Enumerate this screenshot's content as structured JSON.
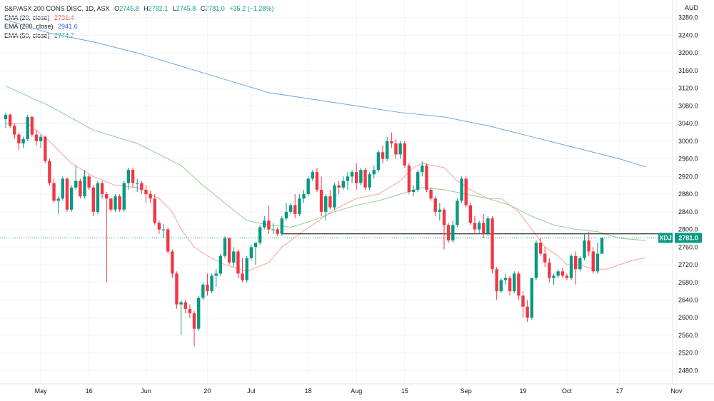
{
  "header": {
    "symbol": "S&P/ASX 200 CONS DISC, 1D, ASX",
    "o_label": "O",
    "o": "2745.8",
    "h_label": "H",
    "h": "2782.1",
    "l_label": "L",
    "l": "2745.8",
    "c_label": "C",
    "c": "2781.0",
    "change": "+35.2 (+1.28%)"
  },
  "indicators": [
    {
      "label": "EMA (20, close)",
      "value": "2736.4",
      "color": "#f5a59a"
    },
    {
      "label": "EMA (200, close)",
      "value": "2941.6",
      "color": "#6fa8dc"
    },
    {
      "label": "EMA (50, close)",
      "value": "2774.7",
      "color": "#8fce8f"
    }
  ],
  "currency": "AUD",
  "ticker_badge": "XDJ",
  "last_price": "2781.0",
  "colors": {
    "up": "#089981",
    "down": "#f23645",
    "hline": "#000000",
    "grid": "#f0f3fa"
  },
  "chart_data": {
    "type": "candlestick",
    "ylim": [
      2450,
      3320
    ],
    "y_ticks": [
      "2480.0",
      "2520.0",
      "2560.0",
      "2600.0",
      "2640.0",
      "2680.0",
      "2720.0",
      "2760.0",
      "2800.0",
      "2840.0",
      "2880.0",
      "2920.0",
      "2960.0",
      "3000.0",
      "3040.0",
      "3080.0",
      "3120.0",
      "3160.0",
      "3200.0",
      "3240.0",
      "3280.0"
    ],
    "x_ticks": [
      {
        "label": "May",
        "index": 8
      },
      {
        "label": "16",
        "index": 19
      },
      {
        "label": "Jun",
        "index": 32
      },
      {
        "label": "20",
        "index": 46
      },
      {
        "label": "Jul",
        "index": 56
      },
      {
        "label": "18",
        "index": 69
      },
      {
        "label": "Aug",
        "index": 80
      },
      {
        "label": "15",
        "index": 91
      },
      {
        "label": "Sep",
        "index": 105
      },
      {
        "label": "19",
        "index": 118
      },
      {
        "label": "Oct",
        "index": 128
      },
      {
        "label": "17",
        "index": 140
      },
      {
        "label": "Nov",
        "index": 153
      }
    ],
    "horizontal_line": 2790,
    "ohlc": [
      [
        3050,
        3065,
        3030,
        3060
      ],
      [
        3060,
        3063,
        3030,
        3035
      ],
      [
        3035,
        3040,
        3005,
        3015
      ],
      [
        3015,
        3020,
        2980,
        2995
      ],
      [
        2995,
        3010,
        2985,
        3005
      ],
      [
        3005,
        3060,
        3000,
        3055
      ],
      [
        3055,
        3058,
        3010,
        3015
      ],
      [
        3015,
        3025,
        2990,
        3000
      ],
      [
        3000,
        3015,
        2985,
        3010
      ],
      [
        3010,
        3012,
        2950,
        2955
      ],
      [
        2955,
        2960,
        2900,
        2905
      ],
      [
        2905,
        2915,
        2860,
        2865
      ],
      [
        2865,
        2875,
        2835,
        2870
      ],
      [
        2870,
        2920,
        2865,
        2915
      ],
      [
        2915,
        2918,
        2840,
        2845
      ],
      [
        2845,
        2900,
        2840,
        2895
      ],
      [
        2895,
        2945,
        2890,
        2910
      ],
      [
        2910,
        2915,
        2870,
        2875
      ],
      [
        2875,
        2935,
        2870,
        2920
      ],
      [
        2920,
        2925,
        2890,
        2895
      ],
      [
        2895,
        2900,
        2830,
        2840
      ],
      [
        2840,
        2910,
        2835,
        2905
      ],
      [
        2905,
        2910,
        2870,
        2880
      ],
      [
        2880,
        2885,
        2680,
        2870
      ],
      [
        2870,
        2872,
        2840,
        2845
      ],
      [
        2845,
        2880,
        2840,
        2875
      ],
      [
        2875,
        2880,
        2840,
        2845
      ],
      [
        2845,
        2910,
        2840,
        2905
      ],
      [
        2905,
        2940,
        2890,
        2935
      ],
      [
        2935,
        2940,
        2895,
        2905
      ],
      [
        2905,
        2915,
        2885,
        2905
      ],
      [
        2905,
        2910,
        2880,
        2890
      ],
      [
        2890,
        2900,
        2860,
        2880
      ],
      [
        2880,
        2888,
        2860,
        2870
      ],
      [
        2870,
        2880,
        2810,
        2815
      ],
      [
        2815,
        2820,
        2790,
        2800
      ],
      [
        2800,
        2812,
        2780,
        2800
      ],
      [
        2800,
        2805,
        2745,
        2750
      ],
      [
        2750,
        2755,
        2690,
        2700
      ],
      [
        2700,
        2705,
        2620,
        2630
      ],
      [
        2630,
        2640,
        2560,
        2635
      ],
      [
        2635,
        2640,
        2610,
        2620
      ],
      [
        2620,
        2630,
        2600,
        2610
      ],
      [
        2610,
        2615,
        2535,
        2575
      ],
      [
        2575,
        2650,
        2570,
        2645
      ],
      [
        2645,
        2680,
        2640,
        2675
      ],
      [
        2675,
        2700,
        2650,
        2660
      ],
      [
        2660,
        2700,
        2655,
        2695
      ],
      [
        2695,
        2710,
        2670,
        2700
      ],
      [
        2700,
        2745,
        2695,
        2740
      ],
      [
        2740,
        2785,
        2735,
        2780
      ],
      [
        2780,
        2782,
        2720,
        2725
      ],
      [
        2725,
        2760,
        2715,
        2750
      ],
      [
        2750,
        2755,
        2690,
        2700
      ],
      [
        2700,
        2735,
        2680,
        2685
      ],
      [
        2685,
        2740,
        2680,
        2735
      ],
      [
        2735,
        2765,
        2730,
        2760
      ],
      [
        2760,
        2770,
        2720,
        2770
      ],
      [
        2770,
        2810,
        2765,
        2805
      ],
      [
        2805,
        2830,
        2800,
        2820
      ],
      [
        2820,
        2855,
        2790,
        2800
      ],
      [
        2800,
        2815,
        2790,
        2800
      ],
      [
        2800,
        2805,
        2785,
        2790
      ],
      [
        2790,
        2830,
        2785,
        2825
      ],
      [
        2825,
        2860,
        2820,
        2840
      ],
      [
        2840,
        2860,
        2835,
        2855
      ],
      [
        2855,
        2880,
        2825,
        2835
      ],
      [
        2835,
        2880,
        2830,
        2870
      ],
      [
        2870,
        2890,
        2860,
        2880
      ],
      [
        2880,
        2920,
        2875,
        2915
      ],
      [
        2915,
        2935,
        2910,
        2930
      ],
      [
        2930,
        2940,
        2885,
        2890
      ],
      [
        2890,
        2920,
        2830,
        2840
      ],
      [
        2840,
        2880,
        2820,
        2875
      ],
      [
        2875,
        2890,
        2845,
        2850
      ],
      [
        2850,
        2905,
        2845,
        2900
      ],
      [
        2900,
        2910,
        2880,
        2895
      ],
      [
        2895,
        2920,
        2890,
        2910
      ],
      [
        2910,
        2930,
        2890,
        2920
      ],
      [
        2920,
        2935,
        2905,
        2930
      ],
      [
        2930,
        2950,
        2890,
        2905
      ],
      [
        2905,
        2940,
        2900,
        2935
      ],
      [
        2935,
        2940,
        2890,
        2895
      ],
      [
        2895,
        2930,
        2890,
        2925
      ],
      [
        2925,
        2945,
        2915,
        2935
      ],
      [
        2935,
        2980,
        2930,
        2975
      ],
      [
        2975,
        2990,
        2950,
        2960
      ],
      [
        2960,
        3010,
        2955,
        3000
      ],
      [
        3000,
        3020,
        2985,
        2995
      ],
      [
        2995,
        3005,
        2960,
        2970
      ],
      [
        2970,
        3000,
        2960,
        2995
      ],
      [
        2995,
        3000,
        2940,
        2945
      ],
      [
        2945,
        2950,
        2880,
        2885
      ],
      [
        2885,
        2900,
        2875,
        2890
      ],
      [
        2890,
        2935,
        2885,
        2930
      ],
      [
        2930,
        2955,
        2920,
        2945
      ],
      [
        2945,
        2950,
        2885,
        2890
      ],
      [
        2890,
        2895,
        2865,
        2870
      ],
      [
        2870,
        2875,
        2830,
        2840
      ],
      [
        2840,
        2860,
        2820,
        2845
      ],
      [
        2845,
        2850,
        2755,
        2810
      ],
      [
        2810,
        2815,
        2770,
        2775
      ],
      [
        2775,
        2820,
        2770,
        2810
      ],
      [
        2810,
        2870,
        2805,
        2865
      ],
      [
        2865,
        2920,
        2860,
        2915
      ],
      [
        2915,
        2920,
        2850,
        2855
      ],
      [
        2855,
        2860,
        2810,
        2815
      ],
      [
        2815,
        2830,
        2790,
        2800
      ],
      [
        2800,
        2820,
        2790,
        2815
      ],
      [
        2815,
        2835,
        2780,
        2790
      ],
      [
        2790,
        2830,
        2785,
        2825
      ],
      [
        2825,
        2830,
        2700,
        2710
      ],
      [
        2710,
        2715,
        2640,
        2660
      ],
      [
        2660,
        2690,
        2655,
        2685
      ],
      [
        2685,
        2700,
        2675,
        2690
      ],
      [
        2690,
        2695,
        2650,
        2660
      ],
      [
        2660,
        2705,
        2655,
        2700
      ],
      [
        2700,
        2705,
        2640,
        2650
      ],
      [
        2650,
        2660,
        2600,
        2625
      ],
      [
        2625,
        2640,
        2590,
        2600
      ],
      [
        2600,
        2690,
        2595,
        2690
      ],
      [
        2690,
        2775,
        2685,
        2770
      ],
      [
        2770,
        2780,
        2740,
        2745
      ],
      [
        2745,
        2760,
        2715,
        2725
      ],
      [
        2725,
        2735,
        2680,
        2690
      ],
      [
        2690,
        2700,
        2675,
        2695
      ],
      [
        2695,
        2710,
        2690,
        2705
      ],
      [
        2705,
        2712,
        2690,
        2695
      ],
      [
        2695,
        2700,
        2685,
        2690
      ],
      [
        2690,
        2745,
        2685,
        2740
      ],
      [
        2740,
        2750,
        2675,
        2710
      ],
      [
        2710,
        2740,
        2705,
        2735
      ],
      [
        2735,
        2790,
        2730,
        2775
      ],
      [
        2775,
        2795,
        2740,
        2750
      ],
      [
        2750,
        2760,
        2700,
        2705
      ],
      [
        2705,
        2770,
        2700,
        2745
      ],
      [
        2745,
        2782,
        2745,
        2781
      ]
    ],
    "series": [
      {
        "name": "EMA (20, close)",
        "start_index": 0,
        "points": [
          [
            0,
            3040
          ],
          [
            5,
            3040
          ],
          [
            10,
            3000
          ],
          [
            15,
            2950
          ],
          [
            20,
            2920
          ],
          [
            25,
            2900
          ],
          [
            30,
            2895
          ],
          [
            35,
            2870
          ],
          [
            38,
            2840
          ],
          [
            40,
            2800
          ],
          [
            43,
            2760
          ],
          [
            46,
            2740
          ],
          [
            50,
            2720
          ],
          [
            55,
            2705
          ],
          [
            60,
            2725
          ],
          [
            63,
            2760
          ],
          [
            67,
            2790
          ],
          [
            70,
            2810
          ],
          [
            75,
            2845
          ],
          [
            80,
            2870
          ],
          [
            85,
            2880
          ],
          [
            90,
            2910
          ],
          [
            93,
            2940
          ],
          [
            95,
            2950
          ],
          [
            100,
            2940
          ],
          [
            103,
            2910
          ],
          [
            106,
            2890
          ],
          [
            110,
            2870
          ],
          [
            113,
            2870
          ],
          [
            117,
            2840
          ],
          [
            120,
            2800
          ],
          [
            123,
            2760
          ],
          [
            126,
            2740
          ],
          [
            128,
            2720
          ],
          [
            131,
            2720
          ],
          [
            134,
            2710
          ],
          [
            137,
            2710
          ],
          [
            140,
            2720
          ],
          [
            143,
            2730
          ],
          [
            146,
            2736
          ]
        ]
      },
      {
        "name": "EMA (200, close)",
        "start_index": 0,
        "points": [
          [
            0,
            3275
          ],
          [
            10,
            3245
          ],
          [
            20,
            3225
          ],
          [
            30,
            3200
          ],
          [
            40,
            3170
          ],
          [
            50,
            3140
          ],
          [
            60,
            3110
          ],
          [
            70,
            3095
          ],
          [
            80,
            3080
          ],
          [
            90,
            3065
          ],
          [
            100,
            3055
          ],
          [
            110,
            3035
          ],
          [
            120,
            3010
          ],
          [
            130,
            2985
          ],
          [
            140,
            2960
          ],
          [
            146,
            2942
          ]
        ]
      },
      {
        "name": "EMA (50, close)",
        "start_index": 0,
        "points": [
          [
            0,
            3125
          ],
          [
            10,
            3080
          ],
          [
            20,
            3025
          ],
          [
            30,
            2995
          ],
          [
            40,
            2945
          ],
          [
            45,
            2900
          ],
          [
            50,
            2860
          ],
          [
            55,
            2820
          ],
          [
            60,
            2810
          ],
          [
            65,
            2805
          ],
          [
            70,
            2820
          ],
          [
            75,
            2840
          ],
          [
            80,
            2855
          ],
          [
            85,
            2865
          ],
          [
            90,
            2880
          ],
          [
            95,
            2895
          ],
          [
            100,
            2890
          ],
          [
            105,
            2880
          ],
          [
            110,
            2870
          ],
          [
            115,
            2855
          ],
          [
            120,
            2830
          ],
          [
            125,
            2810
          ],
          [
            130,
            2800
          ],
          [
            135,
            2795
          ],
          [
            140,
            2780
          ],
          [
            146,
            2775
          ]
        ]
      }
    ]
  }
}
